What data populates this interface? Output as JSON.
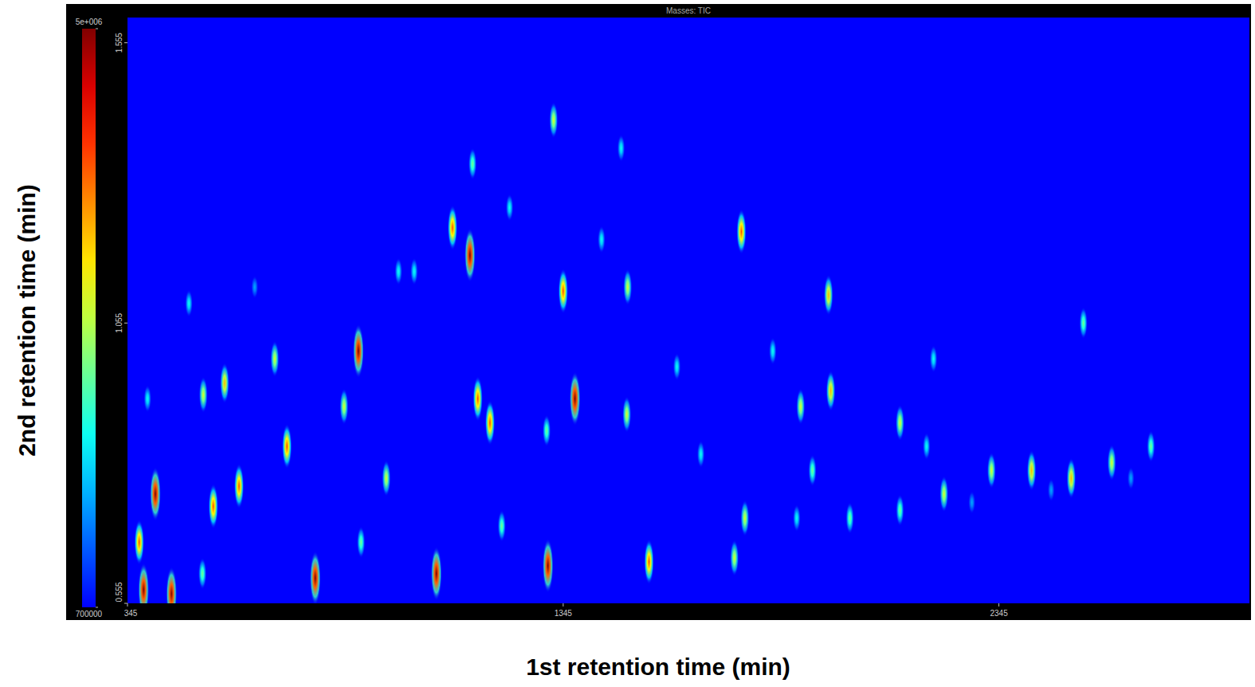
{
  "chart_data": {
    "type": "heatmap",
    "title": "Masses: TIC",
    "x_label": "1st retention time (min)",
    "y_label": "2nd retention time (min)",
    "xlim": [
      345,
      2920
    ],
    "xticks": [
      345,
      1345,
      2345
    ],
    "ylim": [
      0.555,
      1.6
    ],
    "yticks": [
      0.555,
      1.055,
      1.555
    ],
    "color_range": [
      700000,
      5000000
    ],
    "color_ticks": [
      {
        "value": 5000000,
        "label": "5e+006"
      },
      700000
    ],
    "grid": false,
    "x": [
      1323,
      1137,
      1091,
      1131,
      1345,
      1493,
      1754,
      1478,
      875,
      1149,
      1177,
      1372,
      1491,
      1954,
      1959,
      1890,
      2118,
      2539,
      519,
      568,
      601,
      542,
      409,
      391,
      486,
      683,
      711,
      842,
      939,
      776,
      1054,
      1310,
      1542,
      1738,
      1204,
      881,
      1762,
      2003,
      2118,
      2219,
      2328,
      2420,
      2511,
      2604,
      2694,
      1881,
      1826,
      2195,
      1003,
      967,
      1222,
      1433,
      1307,
      1606,
      1661,
      2179,
      1917,
      372,
      517,
      637,
      382,
      446,
      2283,
      2465,
      2648
    ],
    "y": [
      1.417,
      1.339,
      1.225,
      1.176,
      1.112,
      1.119,
      1.218,
      1.367,
      1.005,
      0.92,
      0.877,
      0.92,
      0.892,
      1.105,
      0.934,
      0.906,
      0.877,
      1.055,
      0.927,
      0.948,
      0.764,
      0.728,
      0.75,
      0.92,
      1.09,
      0.991,
      0.835,
      0.906,
      0.778,
      0.6,
      0.608,
      0.622,
      0.629,
      0.636,
      0.693,
      0.664,
      0.707,
      0.707,
      0.721,
      0.75,
      0.792,
      0.792,
      0.778,
      0.806,
      0.835,
      0.707,
      1.005,
      0.991,
      1.147,
      1.147,
      1.261,
      1.204,
      0.863,
      0.977,
      0.821,
      0.835,
      0.792,
      0.664,
      0.608,
      1.119,
      0.579,
      0.572,
      0.735,
      0.757,
      0.778
    ],
    "intensity": [
      3000000,
      2500000,
      4000000,
      5000000,
      4000000,
      3000000,
      4000000,
      2000000,
      5000000,
      4000000,
      4000000,
      5000000,
      3000000,
      3500000,
      3500000,
      3000000,
      3000000,
      2500000,
      3000000,
      3500000,
      4000000,
      4000000,
      5000000,
      2000000,
      2000000,
      3000000,
      4000000,
      3000000,
      3000000,
      5000000,
      5000000,
      5000000,
      4000000,
      3000000,
      2500000,
      2500000,
      3000000,
      2500000,
      2500000,
      3000000,
      3000000,
      3500000,
      3500000,
      3000000,
      2500000,
      2000000,
      2000000,
      2000000,
      2000000,
      2000000,
      2000000,
      2000000,
      2500000,
      2000000,
      2000000,
      2000000,
      2500000,
      4000000,
      2500000,
      1500000,
      5000000,
      5000000,
      1500000,
      1500000,
      1500000
    ]
  }
}
